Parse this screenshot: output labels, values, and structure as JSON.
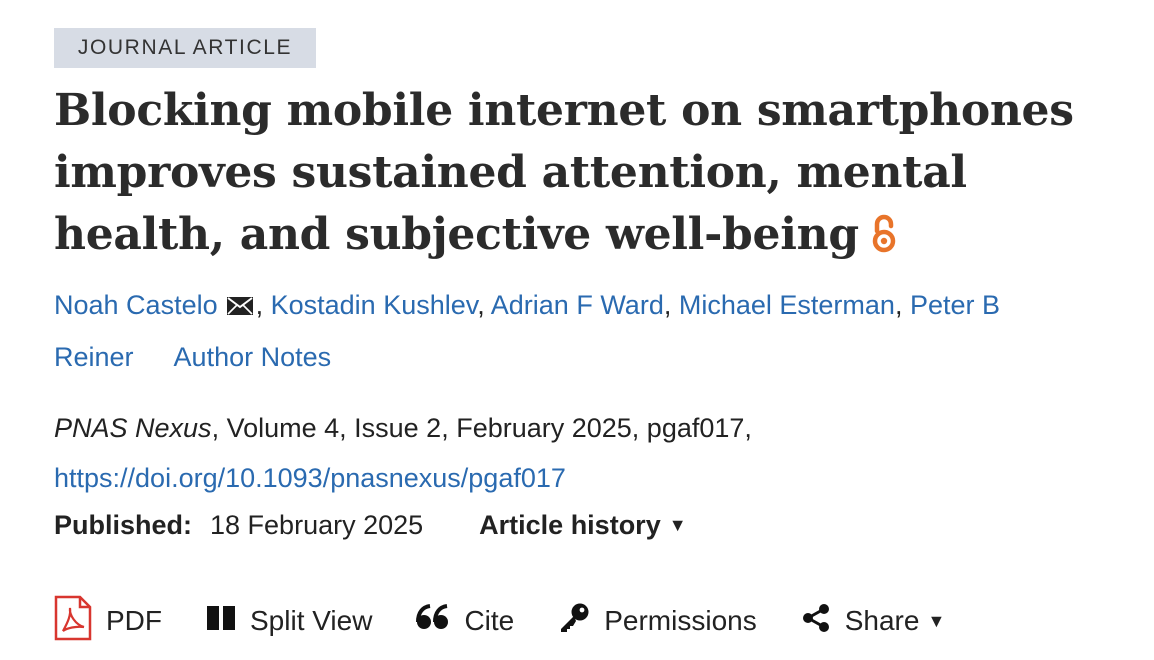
{
  "article": {
    "type_badge": "JOURNAL ARTICLE",
    "title": "Blocking mobile internet on smartphones improves sustained attention, mental health, and subjective well-being",
    "open_access_color": "#e8742a"
  },
  "authors": {
    "list": [
      {
        "name": "Noah Castelo",
        "separator": ", "
      },
      {
        "name": "Kostadin Kushlev",
        "separator": ", "
      },
      {
        "name": "Adrian F Ward",
        "separator": ", "
      },
      {
        "name": "Michael Esterman",
        "separator": ", "
      },
      {
        "name": "Peter B Reiner",
        "separator": ""
      }
    ],
    "author_notes_label": "Author Notes"
  },
  "citation": {
    "journal": "PNAS Nexus",
    "details": ", Volume 4, Issue 2, February 2025, pgaf017,",
    "doi": "https://doi.org/10.1093/pnasnexus/pgaf017"
  },
  "published": {
    "label": "Published:",
    "date": "18 February 2025",
    "history_label": "Article history"
  },
  "toolbar": {
    "pdf": "PDF",
    "split_view": "Split View",
    "cite": "Cite",
    "permissions": "Permissions",
    "share": "Share"
  },
  "colors": {
    "link": "#2a6ab0",
    "pdf_icon": "#d8362f",
    "badge_bg": "#d7dce5"
  }
}
